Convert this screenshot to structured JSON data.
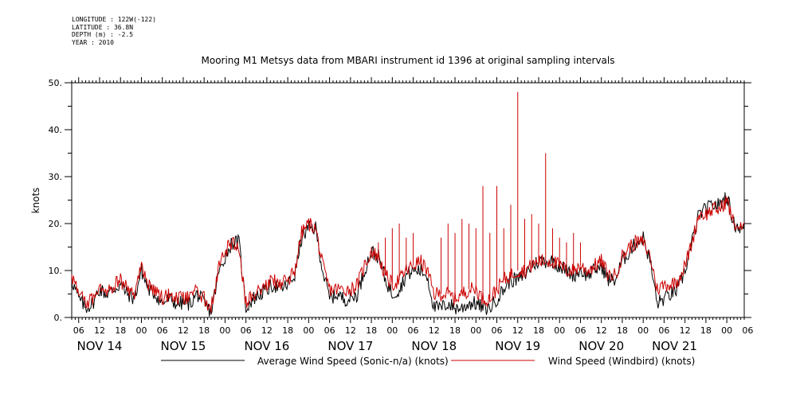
{
  "meta": {
    "longitude": "LONGITUDE : 122W(-122)",
    "latitude": "LATITUDE : 36.8N",
    "depth": "DEPTH (m) : -2.5",
    "year": "YEAR : 2010"
  },
  "chart_data": {
    "type": "line",
    "title": "Mooring M1 Metsys data from MBARI instrument id 1396 at original sampling intervals",
    "ylabel": "knots",
    "xlabel": "",
    "ylim": [
      0,
      50
    ],
    "yticks": [
      0,
      10,
      20,
      30,
      40,
      50
    ],
    "ytick_labels": [
      "0.",
      "10.",
      "20.",
      "30.",
      "40.",
      "50."
    ],
    "xlim_hours": [
      -20,
      173
    ],
    "hour_tick_labels": [
      "06",
      "12",
      "18",
      "00",
      "06",
      "12",
      "18",
      "00",
      "06",
      "12",
      "18",
      "00",
      "06",
      "12",
      "18",
      "00",
      "06",
      "12",
      "18",
      "00",
      "06",
      "12",
      "18",
      "00",
      "06",
      "12",
      "18",
      "00",
      "06",
      "12",
      "18",
      "00",
      "06"
    ],
    "hour_tick_start": -18,
    "hour_tick_step": 6,
    "day_labels": [
      {
        "label": "NOV 14",
        "hour": -12
      },
      {
        "label": "NOV 15",
        "hour": 12
      },
      {
        "label": "NOV 16",
        "hour": 36
      },
      {
        "label": "NOV 17",
        "hour": 60
      },
      {
        "label": "NOV 18",
        "hour": 84
      },
      {
        "label": "NOV 19",
        "hour": 108
      },
      {
        "label": "NOV 20",
        "hour": 132
      },
      {
        "label": "NOV 21",
        "hour": 153
      }
    ],
    "anchor_hours": [
      -20,
      -18,
      -16,
      -14,
      -12,
      -10,
      -8,
      -6,
      -4,
      -2,
      0,
      2,
      4,
      6,
      8,
      10,
      12,
      14,
      16,
      18,
      20,
      22,
      24,
      26,
      28,
      30,
      32,
      34,
      36,
      38,
      40,
      42,
      44,
      46,
      48,
      50,
      52,
      54,
      56,
      58,
      60,
      62,
      64,
      66,
      68,
      70,
      72,
      74,
      76,
      78,
      80,
      82,
      84,
      86,
      88,
      90,
      92,
      94,
      96,
      98,
      100,
      102,
      104,
      106,
      108,
      110,
      112,
      114,
      116,
      118,
      120,
      122,
      124,
      126,
      128,
      130,
      132,
      134,
      136,
      138,
      140,
      142,
      144,
      146,
      148,
      150,
      152,
      154,
      156,
      158,
      160,
      162,
      164,
      166,
      168,
      170,
      172
    ],
    "series": [
      {
        "name": "Average Wind Speed (Sonic-n/a) (knots)",
        "color": "#000000",
        "values": [
          8,
          4,
          2,
          3,
          6,
          5,
          6,
          7,
          5,
          4,
          10,
          6,
          5,
          3,
          4,
          3,
          3,
          3,
          5,
          3,
          1,
          9,
          13,
          16,
          16,
          2,
          4,
          5,
          6,
          7,
          6,
          7,
          9,
          17,
          19,
          19,
          10,
          4,
          5,
          4,
          4,
          5,
          10,
          14,
          13,
          8,
          5,
          6,
          9,
          10,
          10,
          9,
          2,
          2,
          3,
          2,
          2,
          3,
          3,
          2,
          2,
          4,
          6,
          8,
          8,
          9,
          11,
          12,
          12,
          12,
          11,
          10,
          9,
          10,
          9,
          10,
          11,
          8,
          8,
          12,
          14,
          16,
          17,
          12,
          3,
          4,
          5,
          6,
          10,
          16,
          22,
          23,
          24,
          24,
          26,
          20,
          19
        ]
      },
      {
        "name": "Wind Speed (Windbird) (knots)",
        "color": "#cc0000",
        "values": [
          9,
          5,
          3,
          4,
          7,
          6,
          7,
          8,
          6,
          5,
          11,
          7,
          6,
          4,
          5,
          4,
          4,
          4,
          6,
          4,
          2,
          10,
          14,
          16,
          15,
          3,
          5,
          6,
          7,
          8,
          7,
          8,
          10,
          18,
          20,
          19,
          11,
          6,
          6,
          6,
          6,
          7,
          11,
          14,
          13,
          9,
          7,
          8,
          10,
          11,
          12,
          10,
          5,
          5,
          5,
          4,
          5,
          6,
          6,
          4,
          4,
          6,
          8,
          9,
          10,
          10,
          11,
          12,
          12,
          12,
          11,
          10,
          10,
          11,
          10,
          11,
          12,
          9,
          9,
          13,
          15,
          16,
          16,
          13,
          6,
          7,
          7,
          8,
          11,
          16,
          22,
          22,
          23,
          23,
          25,
          20,
          19
        ],
        "spikes": [
          {
            "hour": 66,
            "value": 15
          },
          {
            "hour": 68,
            "value": 16
          },
          {
            "hour": 70,
            "value": 17
          },
          {
            "hour": 72,
            "value": 19
          },
          {
            "hour": 74,
            "value": 20
          },
          {
            "hour": 76,
            "value": 17
          },
          {
            "hour": 78,
            "value": 18
          },
          {
            "hour": 86,
            "value": 17
          },
          {
            "hour": 88,
            "value": 20
          },
          {
            "hour": 90,
            "value": 18
          },
          {
            "hour": 92,
            "value": 21
          },
          {
            "hour": 94,
            "value": 20
          },
          {
            "hour": 96,
            "value": 19
          },
          {
            "hour": 98,
            "value": 28
          },
          {
            "hour": 100,
            "value": 18
          },
          {
            "hour": 102,
            "value": 28
          },
          {
            "hour": 104,
            "value": 19
          },
          {
            "hour": 106,
            "value": 24
          },
          {
            "hour": 108,
            "value": 48
          },
          {
            "hour": 110,
            "value": 21
          },
          {
            "hour": 112,
            "value": 22
          },
          {
            "hour": 114,
            "value": 20
          },
          {
            "hour": 116,
            "value": 35
          },
          {
            "hour": 118,
            "value": 19
          },
          {
            "hour": 120,
            "value": 17
          },
          {
            "hour": 122,
            "value": 16
          },
          {
            "hour": 124,
            "value": 18
          },
          {
            "hour": 126,
            "value": 16
          }
        ]
      }
    ]
  }
}
